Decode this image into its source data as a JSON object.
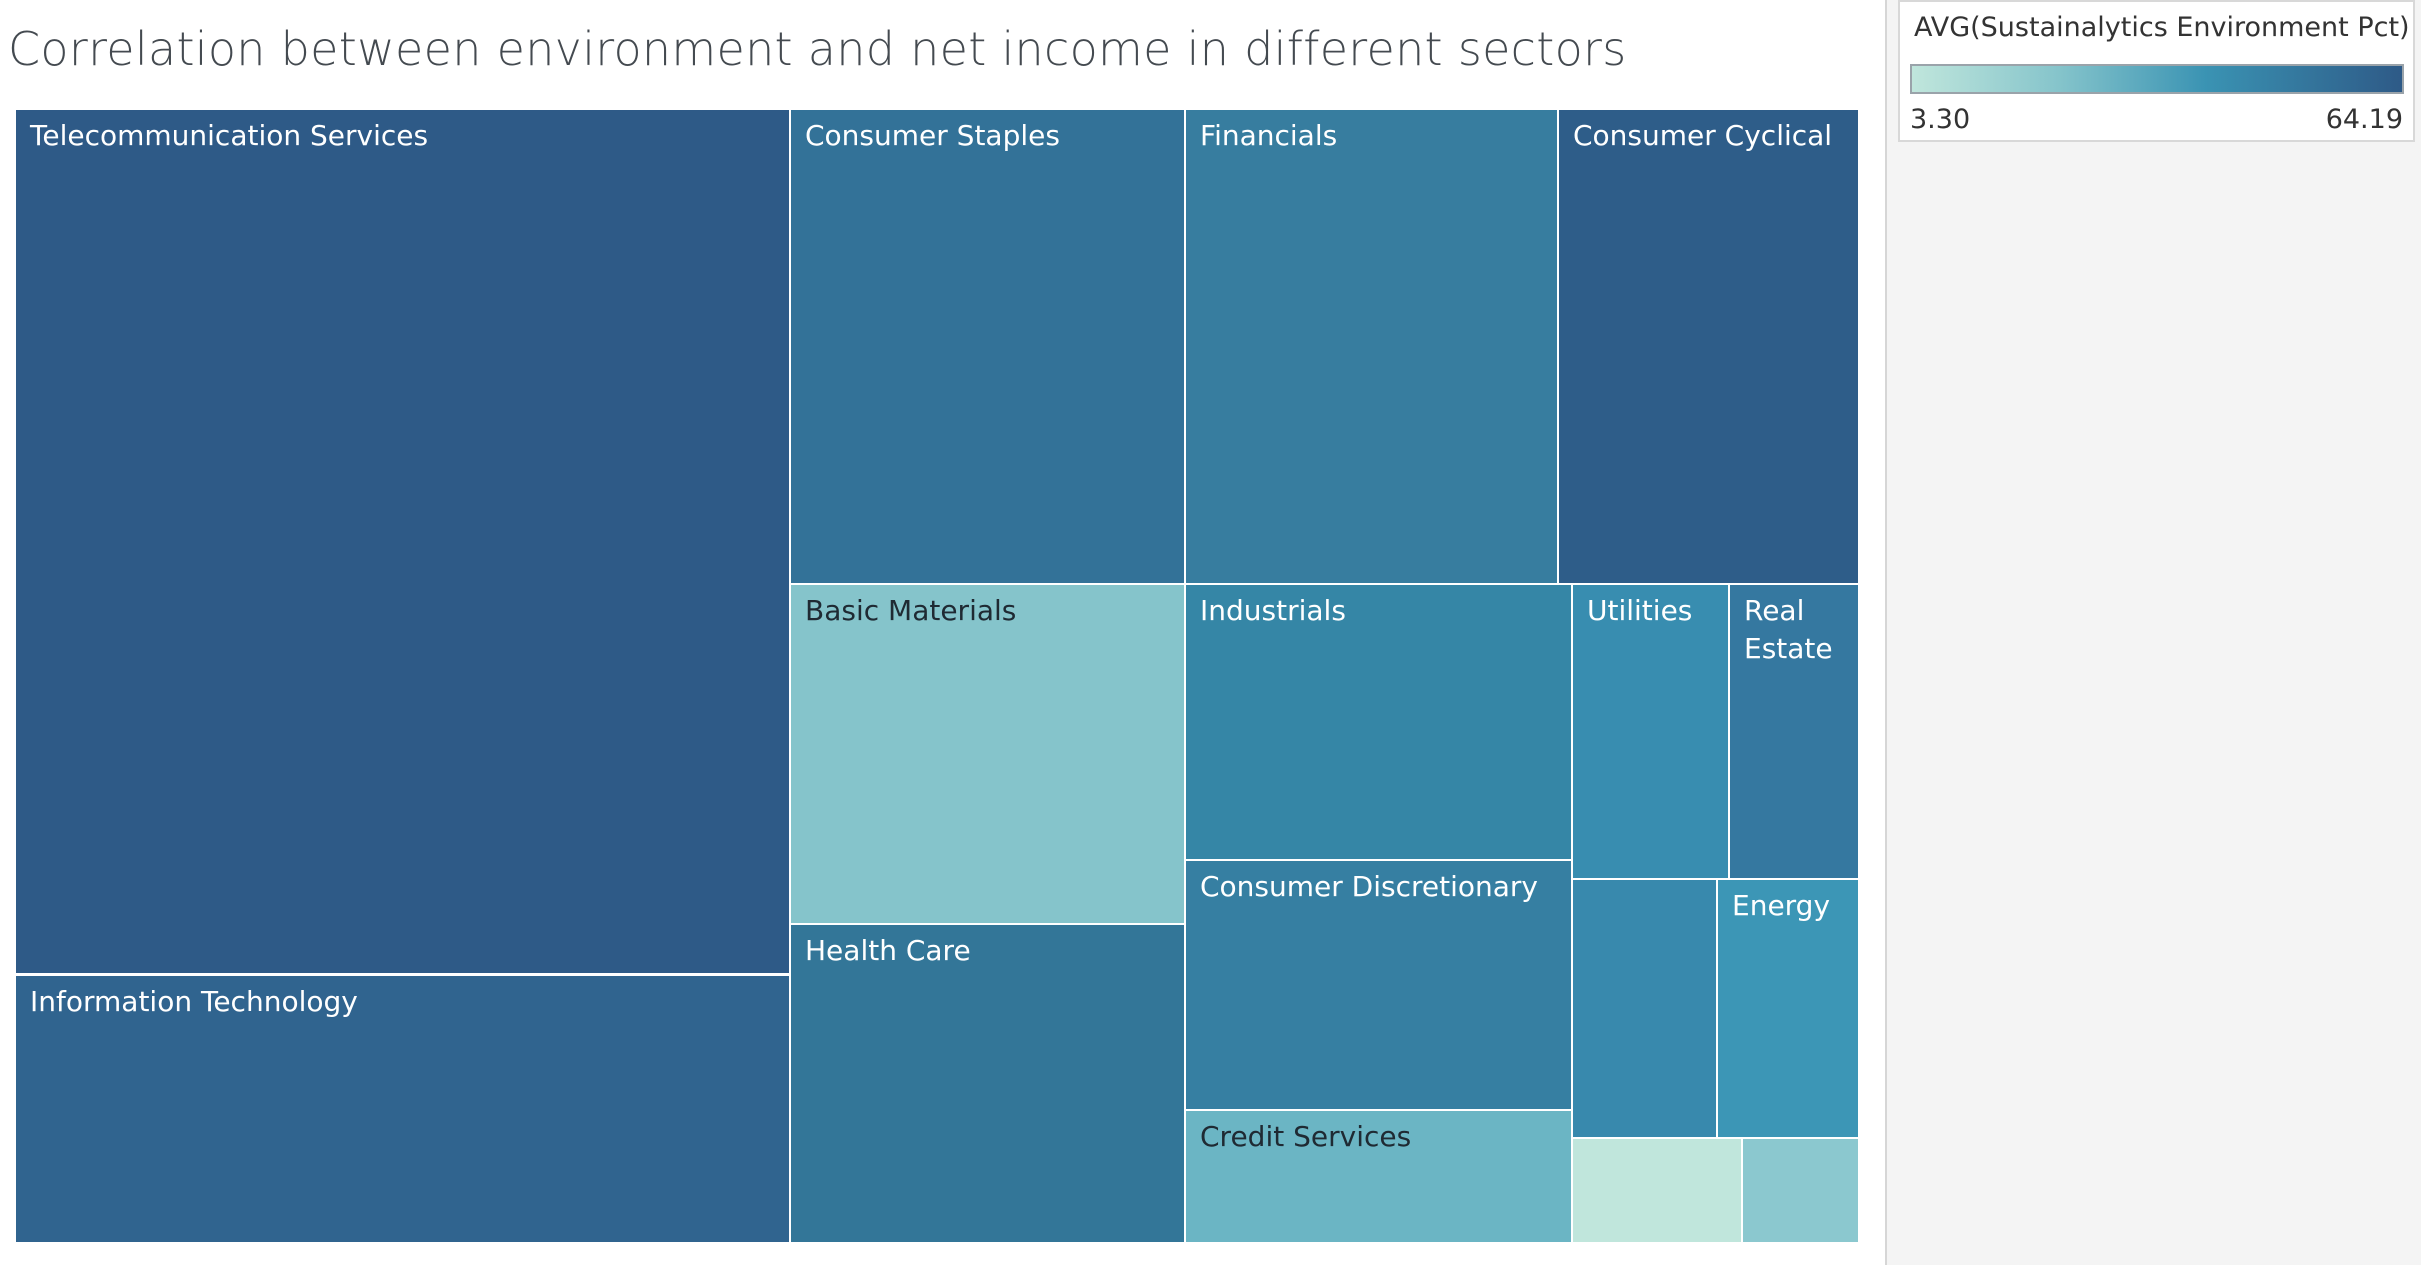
{
  "title": "Correlation between environment and net income in different sectors",
  "legend": {
    "title": "AVG(Sustainalytics Environment Pct)",
    "min_label": "3.30",
    "max_label": "64.19",
    "color_low": "#c0e6dc",
    "color_high": "#2e5a87"
  },
  "chart_data": {
    "type": "treemap",
    "title": "Correlation between environment and net income in different sectors",
    "color_measure": "AVG(Sustainalytics Environment Pct)",
    "color_range": [
      3.3,
      64.19
    ],
    "tiles": [
      {
        "label": "Telecommunication Services",
        "color": "#2e5a87",
        "dark_text": false
      },
      {
        "label": "Information Technology",
        "color": "#30648f",
        "dark_text": false
      },
      {
        "label": "Consumer Staples",
        "color": "#337298",
        "dark_text": false
      },
      {
        "label": "Basic Materials",
        "color": "#85c4cb",
        "dark_text": true
      },
      {
        "label": "Health Care",
        "color": "#337698",
        "dark_text": false
      },
      {
        "label": "Financials",
        "color": "#377d9f",
        "dark_text": false
      },
      {
        "label": "Consumer Cyclical",
        "color": "#2e5d89",
        "dark_text": false
      },
      {
        "label": "Industrials",
        "color": "#3586a6",
        "dark_text": false
      },
      {
        "label": "Consumer Discretionary",
        "color": "#367fa2",
        "dark_text": false
      },
      {
        "label": "Credit Services",
        "color": "#6bb5c4",
        "dark_text": true
      },
      {
        "label": "Utilities",
        "color": "#388db0",
        "dark_text": false
      },
      {
        "label": "Real Estate",
        "color": "#3578a0",
        "dark_text": false
      },
      {
        "label": "",
        "color": "#3889ad",
        "dark_text": false
      },
      {
        "label": "Energy",
        "color": "#3c96b6",
        "dark_text": false
      },
      {
        "label": "",
        "color": "#c0e6dc",
        "dark_text": false
      },
      {
        "label": "",
        "color": "#8bc8cf",
        "dark_text": false
      }
    ]
  }
}
